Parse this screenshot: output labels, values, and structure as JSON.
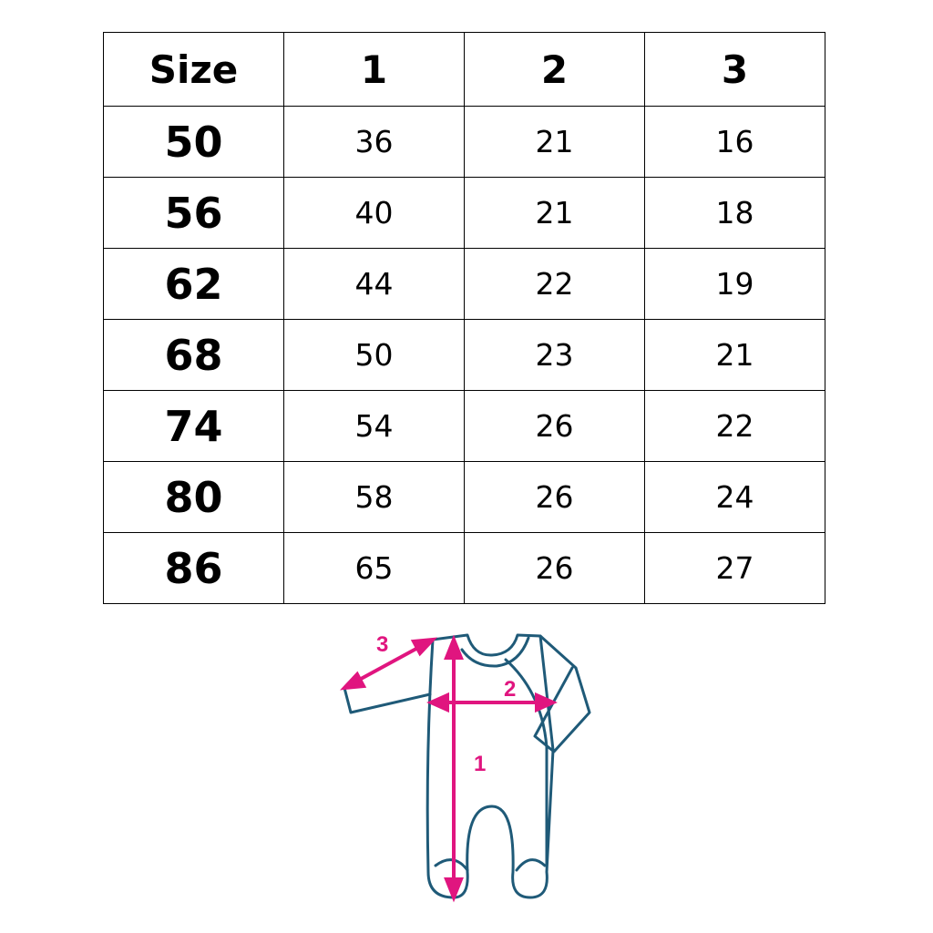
{
  "table": {
    "headers": [
      "Size",
      "1",
      "2",
      "3"
    ],
    "rows": [
      [
        "50",
        "36",
        "21",
        "16"
      ],
      [
        "56",
        "40",
        "21",
        "18"
      ],
      [
        "62",
        "44",
        "22",
        "19"
      ],
      [
        "68",
        "50",
        "23",
        "21"
      ],
      [
        "74",
        "54",
        "26",
        "22"
      ],
      [
        "80",
        "58",
        "26",
        "24"
      ],
      [
        "86",
        "65",
        "26",
        "27"
      ]
    ]
  },
  "diagram": {
    "labels": {
      "length": "1",
      "chest": "2",
      "sleeve": "3"
    },
    "outline_color": "#1f5a78",
    "arrow_color": "#e0157f"
  }
}
